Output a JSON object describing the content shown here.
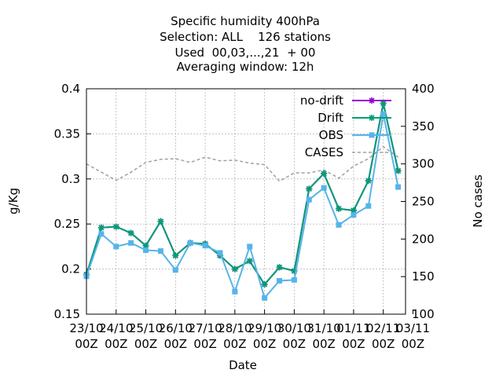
{
  "chart_data": {
    "type": "line",
    "title_lines": [
      "Specific humidity 400hPa",
      "Selection: ALL    126 stations",
      "Used  00,03,...,21  + 00",
      "Averaging window: 12h"
    ],
    "xlabel": "Date",
    "ylabel": "g/Kg",
    "y2label": "No cases",
    "ylim": [
      0.15,
      0.4
    ],
    "y2lim": [
      100,
      400
    ],
    "yticks": [
      "0.15",
      "0.2",
      "0.25",
      "0.3",
      "0.35",
      "0.4"
    ],
    "y2ticks": [
      "100",
      "150",
      "200",
      "250",
      "300",
      "350",
      "400"
    ],
    "x_tick_labels": [
      {
        "day": "23/10",
        "hour": "00Z"
      },
      {
        "day": "24/10",
        "hour": "00Z"
      },
      {
        "day": "25/10",
        "hour": "00Z"
      },
      {
        "day": "26/10",
        "hour": "00Z"
      },
      {
        "day": "27/10",
        "hour": "00Z"
      },
      {
        "day": "28/10",
        "hour": "00Z"
      },
      {
        "day": "29/10",
        "hour": "00Z"
      },
      {
        "day": "30/10",
        "hour": "00Z"
      },
      {
        "day": "31/10",
        "hour": "00Z"
      },
      {
        "day": "01/11",
        "hour": "00Z"
      },
      {
        "day": "02/11",
        "hour": "00Z"
      },
      {
        "day": "03/11",
        "hour": "00Z"
      }
    ],
    "x_hours_step": 12,
    "grid": true,
    "legend_position": "top-right",
    "series": [
      {
        "name": "no-drift",
        "color": "#9400d3",
        "marker": "star",
        "axis": "left",
        "values": [
          0.194,
          0.246,
          0.247,
          0.24,
          0.226,
          0.253,
          0.215,
          0.229,
          0.228,
          0.215,
          0.2,
          0.209,
          0.183,
          0.202,
          0.198,
          0.289,
          0.306,
          0.267,
          0.265,
          0.298,
          0.384,
          0.309
        ]
      },
      {
        "name": "Drift",
        "color": "#009e73",
        "marker": "star",
        "axis": "left",
        "values": [
          0.194,
          0.246,
          0.247,
          0.24,
          0.226,
          0.253,
          0.215,
          0.229,
          0.228,
          0.215,
          0.2,
          0.209,
          0.183,
          0.202,
          0.198,
          0.289,
          0.306,
          0.267,
          0.265,
          0.298,
          0.384,
          0.309
        ]
      },
      {
        "name": "OBS",
        "color": "#56b4e9",
        "marker": "square",
        "axis": "left",
        "values": [
          0.192,
          0.239,
          0.225,
          0.229,
          0.221,
          0.22,
          0.199,
          0.229,
          0.226,
          0.218,
          0.175,
          0.225,
          0.168,
          0.187,
          0.188,
          0.277,
          0.29,
          0.249,
          0.26,
          0.27,
          0.372,
          0.291
        ]
      },
      {
        "name": "CASES",
        "color": "#a0a0a0",
        "marker": "none",
        "dash": true,
        "axis": "right",
        "values": [
          300,
          289,
          278,
          289,
          302,
          306,
          307,
          302,
          309,
          304,
          305,
          301,
          299,
          277,
          288,
          288,
          292,
          281,
          297,
          307,
          323,
          309
        ]
      }
    ]
  }
}
